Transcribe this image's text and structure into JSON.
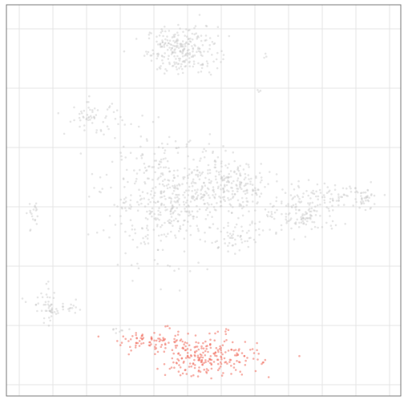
{
  "chart_data": {
    "type": "scatter",
    "title": "",
    "xlabel": "",
    "ylabel": "",
    "grid": true,
    "legend": "none",
    "xlim": [
      0,
      100
    ],
    "ylim": [
      0,
      100
    ],
    "axis_ticks": "none",
    "colors": {
      "background": "#ffffff",
      "grid": "#e4e4e4",
      "border": "#7a7a7a",
      "background_points": "#c8c8c8",
      "highlight_points": "#f07060"
    },
    "series": [
      {
        "role": "background",
        "clusters": [
          {
            "cx": 44.5,
            "cy": 88.5,
            "sx": 4.5,
            "sy": 3.0,
            "n": 260
          },
          {
            "cx": 42.0,
            "cy": 50.5,
            "sx": 8.5,
            "sy": 7.0,
            "n": 520
          },
          {
            "cx": 58.0,
            "cy": 54.0,
            "sx": 5.0,
            "sy": 3.0,
            "n": 160
          },
          {
            "cx": 75.0,
            "cy": 47.0,
            "sx": 5.0,
            "sy": 3.0,
            "n": 150
          },
          {
            "cx": 85.0,
            "cy": 51.5,
            "sx": 4.0,
            "sy": 1.5,
            "n": 60
          },
          {
            "cx": 91.0,
            "cy": 50.5,
            "sx": 1.5,
            "sy": 1.2,
            "n": 25
          },
          {
            "cx": 59.0,
            "cy": 40.5,
            "sx": 2.5,
            "sy": 2.0,
            "n": 45
          },
          {
            "cx": 22.0,
            "cy": 71.0,
            "sx": 3.5,
            "sy": 2.0,
            "n": 60
          },
          {
            "cx": 10.0,
            "cy": 23.0,
            "sx": 2.0,
            "sy": 2.5,
            "n": 35
          },
          {
            "cx": 14.0,
            "cy": 22.0,
            "sx": 3.0,
            "sy": 0.8,
            "n": 30
          },
          {
            "cx": 7.0,
            "cy": 46.0,
            "sx": 0.8,
            "sy": 2.5,
            "n": 20
          },
          {
            "cx": 28.0,
            "cy": 17.0,
            "sx": 1.5,
            "sy": 0.4,
            "n": 8
          },
          {
            "cx": 66.0,
            "cy": 87.0,
            "sx": 0.3,
            "sy": 0.3,
            "n": 3
          },
          {
            "cx": 64.0,
            "cy": 78.0,
            "sx": 0.3,
            "sy": 0.4,
            "n": 3
          },
          {
            "cx": 44.0,
            "cy": 27.0,
            "sx": 0.3,
            "sy": 0.3,
            "n": 1
          }
        ]
      },
      {
        "role": "highlight",
        "clusters": [
          {
            "cx": 51.0,
            "cy": 10.0,
            "sx": 6.5,
            "sy": 2.5,
            "n": 230
          },
          {
            "cx": 37.0,
            "cy": 14.0,
            "sx": 4.5,
            "sy": 1.0,
            "n": 70
          },
          {
            "cx": 41.0,
            "cy": 17.5,
            "sx": 0.5,
            "sy": 0.3,
            "n": 3
          },
          {
            "cx": 56.0,
            "cy": 16.5,
            "sx": 0.6,
            "sy": 0.5,
            "n": 4
          }
        ]
      }
    ]
  }
}
